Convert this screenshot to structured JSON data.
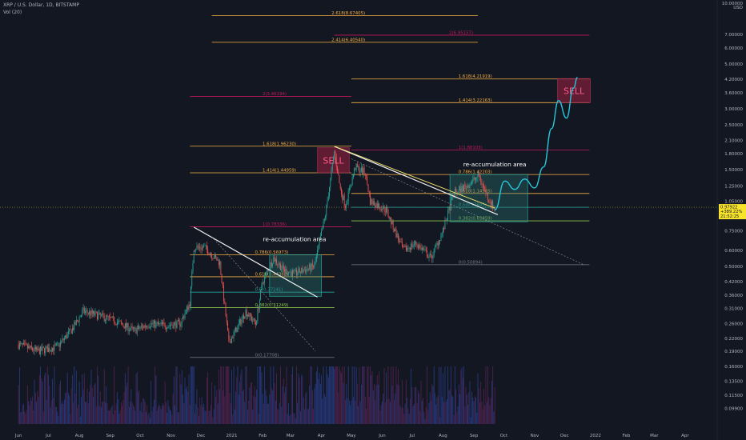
{
  "header": {
    "symbol_line": "XRP / U.S. Dollar, 1D, BITSTAMP",
    "indicator_line": "Vol (20)"
  },
  "colors": {
    "background": "#131722",
    "up": "#26a69a",
    "down": "#ef5350",
    "volume_up": "#2a3f8f",
    "volume_down": "#5a2556",
    "fib_gold": "#f5b042",
    "fib_pink": "#c2185b",
    "fib_teal": "#26a69a",
    "fib_green": "#8bc34a",
    "fib_gray": "#787b86",
    "box_fill": "#2a7c78",
    "sell_fill": "#7a1f3a",
    "trend_white": "#f0f0f0",
    "trend_yellow": "#f5e66b"
  },
  "chart_data": {
    "type": "candlestick",
    "title": "XRP / U.S. Dollar, 1D, BITSTAMP",
    "yscale": "log",
    "ylim": [
      0.08,
      10.0
    ],
    "y_unit": "USD",
    "y_ticks": [
      "10.00000",
      "7.00000",
      "6.00000",
      "5.00000",
      "4.20000",
      "3.60000",
      "3.00000",
      "2.50000",
      "2.10000",
      "1.80000",
      "1.50000",
      "1.25000",
      "1.05000",
      "0.75000",
      "0.60000",
      "0.50000",
      "0.42000",
      "0.36000",
      "0.31000",
      "0.26000",
      "0.22000",
      "0.19000",
      "0.16000",
      "0.13500",
      "0.11500",
      "0.09900"
    ],
    "x_ticks": [
      "Jun",
      "Jul",
      "Aug",
      "Sep",
      "Oct",
      "Nov",
      "Dec",
      "2021",
      "Feb",
      "Mar",
      "Apr",
      "May",
      "Jun",
      "Jul",
      "Aug",
      "Sep",
      "Oct",
      "Nov",
      "Dec",
      "2022",
      "Feb",
      "Mar",
      "Apr"
    ],
    "price_path": [
      [
        "2020-06-01",
        0.205
      ],
      [
        "2020-06-20",
        0.19
      ],
      [
        "2020-07-10",
        0.2
      ],
      [
        "2020-07-25",
        0.245
      ],
      [
        "2020-08-05",
        0.3
      ],
      [
        "2020-08-20",
        0.285
      ],
      [
        "2020-09-05",
        0.27
      ],
      [
        "2020-09-25",
        0.24
      ],
      [
        "2020-10-10",
        0.26
      ],
      [
        "2020-10-25",
        0.255
      ],
      [
        "2020-11-10",
        0.26
      ],
      [
        "2020-11-20",
        0.33
      ],
      [
        "2020-11-24",
        0.62
      ],
      [
        "2020-12-05",
        0.62
      ],
      [
        "2020-12-20",
        0.52
      ],
      [
        "2020-12-29",
        0.21
      ],
      [
        "2021-01-05",
        0.24
      ],
      [
        "2021-01-15",
        0.3
      ],
      [
        "2021-01-25",
        0.26
      ],
      [
        "2021-02-01",
        0.42
      ],
      [
        "2021-02-12",
        0.55
      ],
      [
        "2021-02-22",
        0.48
      ],
      [
        "2021-03-05",
        0.46
      ],
      [
        "2021-03-25",
        0.5
      ],
      [
        "2021-04-05",
        0.9
      ],
      [
        "2021-04-14",
        1.85
      ],
      [
        "2021-04-20",
        1.2
      ],
      [
        "2021-04-25",
        1.0
      ],
      [
        "2021-05-05",
        1.55
      ],
      [
        "2021-05-15",
        1.45
      ],
      [
        "2021-05-20",
        1.05
      ],
      [
        "2021-06-05",
        0.95
      ],
      [
        "2021-06-22",
        0.6
      ],
      [
        "2021-07-05",
        0.65
      ],
      [
        "2021-07-20",
        0.55
      ],
      [
        "2021-08-01",
        0.75
      ],
      [
        "2021-08-12",
        1.15
      ],
      [
        "2021-08-25",
        1.25
      ],
      [
        "2021-09-06",
        1.4
      ],
      [
        "2021-09-15",
        1.1
      ],
      [
        "2021-09-22",
        0.95
      ]
    ],
    "projection_path": [
      [
        "2021-09-22",
        0.95
      ],
      [
        "2021-10-02",
        1.32
      ],
      [
        "2021-10-12",
        1.2
      ],
      [
        "2021-10-22",
        1.35
      ],
      [
        "2021-11-01",
        1.22
      ],
      [
        "2021-11-10",
        1.55
      ],
      [
        "2021-11-18",
        2.4
      ],
      [
        "2021-11-25",
        3.3
      ],
      [
        "2021-12-03",
        2.7
      ],
      [
        "2021-12-10",
        3.8
      ],
      [
        "2021-12-14",
        4.3
      ]
    ],
    "current_price": {
      "value": "0.97922",
      "change": "+389.22%",
      "countdown": "21:52:25"
    },
    "fib_levels": [
      {
        "label": "2.618(8.67405)",
        "value": 8.67405,
        "start": "2020-12-12",
        "end": "2021-09-05",
        "color": "gold"
      },
      {
        "label": "2.414(6.40540)",
        "value": 6.4054,
        "start": "2020-12-12",
        "end": "2021-09-05",
        "color": "gold"
      },
      {
        "label": "2(6.95157)",
        "value": 6.95157,
        "start": "2021-04-14",
        "end": "2021-12-26",
        "color": "pink"
      },
      {
        "label": "1.618(4.21919)",
        "value": 4.21919,
        "start": "2021-05-01",
        "end": "2021-12-26",
        "color": "gold"
      },
      {
        "label": "2(3.46194)",
        "value": 3.46194,
        "start": "2020-11-20",
        "end": "2021-05-01",
        "color": "pink"
      },
      {
        "label": "1.414(3.22163)",
        "value": 3.22163,
        "start": "2021-05-01",
        "end": "2021-12-26",
        "color": "gold"
      },
      {
        "label": "1.618(1.96230)",
        "value": 1.9623,
        "start": "2020-11-20",
        "end": "2021-05-01",
        "color": "gold"
      },
      {
        "label": "1(1.88103)",
        "value": 1.88103,
        "start": "2021-05-01",
        "end": "2021-12-26",
        "color": "pink"
      },
      {
        "label": "1.414(1.44959)",
        "value": 1.44959,
        "start": "2020-11-20",
        "end": "2021-05-01",
        "color": "gold"
      },
      {
        "label": "0.786(1.42203)",
        "value": 1.42203,
        "start": "2021-05-01",
        "end": "2021-12-26",
        "color": "gold"
      },
      {
        "label": "0.618(1.14565)",
        "value": 1.14565,
        "start": "2021-05-01",
        "end": "2021-12-26",
        "color": "gold"
      },
      {
        "label": "0.5(0.97845)",
        "value": 0.97845,
        "start": "2021-05-01",
        "end": "2021-12-26",
        "color": "teal"
      },
      {
        "label": "1(0.78336)",
        "value": 0.78336,
        "start": "2020-11-20",
        "end": "2021-05-01",
        "color": "pink"
      },
      {
        "label": "0.382(0.83859)",
        "value": 0.83859,
        "start": "2021-05-01",
        "end": "2021-12-26",
        "color": "green"
      },
      {
        "label": "0.786(0.56973)",
        "value": 0.56973,
        "start": "2020-11-20",
        "end": "2021-04-14",
        "color": "gold"
      },
      {
        "label": "0(0.50894)",
        "value": 0.50894,
        "start": "2021-05-01",
        "end": "2021-12-26",
        "color": "gray"
      },
      {
        "label": "0.618(0.44382)",
        "value": 0.44382,
        "start": "2020-11-20",
        "end": "2021-04-14",
        "color": "gold"
      },
      {
        "label": "0.5(0.37241)",
        "value": 0.37241,
        "start": "2020-11-20",
        "end": "2021-04-14",
        "color": "teal"
      },
      {
        "label": "0.382(0.31249)",
        "value": 0.31249,
        "start": "2020-11-20",
        "end": "2021-04-14",
        "color": "green"
      },
      {
        "label": "0(0.17708)",
        "value": 0.17708,
        "start": "2020-11-20",
        "end": "2021-04-14",
        "color": "gray"
      }
    ],
    "trendlines": [
      {
        "from": [
          "2020-11-24",
          0.78
        ],
        "to": [
          "2021-03-28",
          0.352
        ],
        "color": "white"
      },
      {
        "from": [
          "2021-04-14",
          1.96
        ],
        "to": [
          "2021-09-25",
          0.9
        ],
        "color": "white"
      },
      {
        "from": [
          "2021-04-14",
          1.96
        ],
        "to": [
          "2021-09-22",
          0.97
        ],
        "color": "yellow"
      },
      {
        "from": [
          "2020-12-12",
          0.7
        ],
        "to": [
          "2021-03-26",
          0.19
        ],
        "color": "dotted"
      },
      {
        "from": [
          "2021-05-01",
          1.7
        ],
        "to": [
          "2021-12-20",
          0.51
        ],
        "color": "dotted"
      }
    ],
    "boxes": [
      {
        "from": [
          "2021-02-08",
          0.355
        ],
        "to": [
          "2021-04-01",
          0.57
        ]
      },
      {
        "from": [
          "2021-08-08",
          0.83
        ],
        "to": [
          "2021-10-25",
          1.42
        ]
      }
    ],
    "sell_zones": [
      {
        "label": "SELL",
        "from": [
          "2021-03-28",
          1.45
        ],
        "to": [
          "2021-04-29",
          1.93
        ]
      },
      {
        "label": "SELL",
        "from": [
          "2021-11-24",
          3.22
        ],
        "to": [
          "2021-12-27",
          4.24
        ]
      }
    ],
    "annotations": [
      {
        "text": "re-accumulation area",
        "at": [
          "2021-03-05",
          0.665
        ]
      },
      {
        "text": "re-accumulation area",
        "at": [
          "2021-09-22",
          1.56
        ]
      }
    ]
  }
}
